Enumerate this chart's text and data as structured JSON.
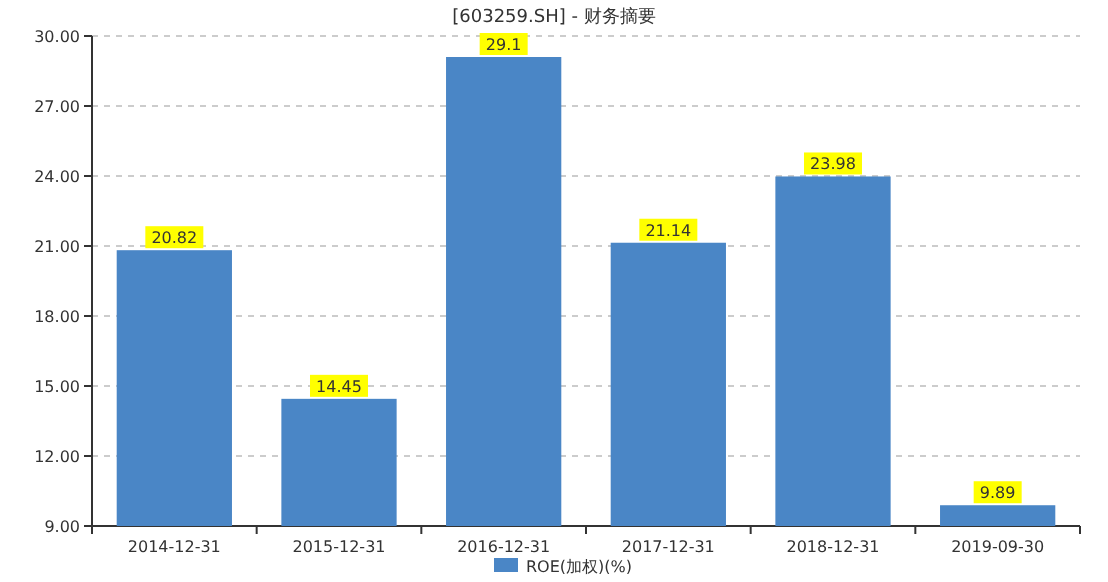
{
  "chart_data": {
    "type": "bar",
    "title": "[603259.SH] - 财务摘要",
    "categories": [
      "2014-12-31",
      "2015-12-31",
      "2016-12-31",
      "2017-12-31",
      "2018-12-31",
      "2019-09-30"
    ],
    "series": [
      {
        "name": "ROE(加权)(%)",
        "color": "#4a86c6",
        "values": [
          20.82,
          14.45,
          29.1,
          21.14,
          23.98,
          9.89
        ]
      }
    ],
    "ylim": [
      9,
      30
    ],
    "yticks": [
      {
        "value": 9,
        "label": "9.00"
      },
      {
        "value": 12,
        "label": "12.00"
      },
      {
        "value": 15,
        "label": "15.00"
      },
      {
        "value": 18,
        "label": "18.00"
      },
      {
        "value": 21,
        "label": "21.00"
      },
      {
        "value": 24,
        "label": "24.00"
      },
      {
        "value": 27,
        "label": "27.00"
      },
      {
        "value": 30,
        "label": "30.00"
      }
    ],
    "grid": "y",
    "legend": "bottom",
    "data_labels": true
  }
}
